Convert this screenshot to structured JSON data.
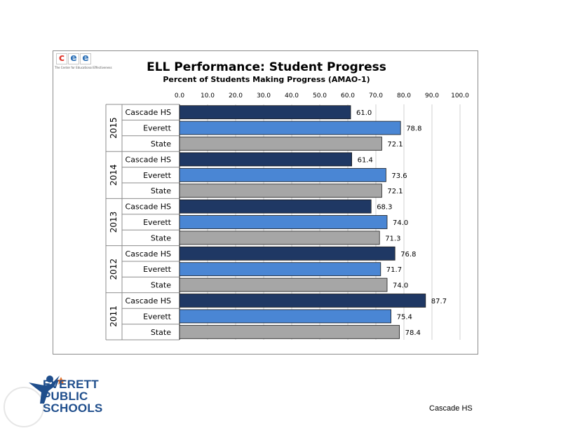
{
  "page": {
    "footer_label": "Cascade HS"
  },
  "logos": {
    "cee": {
      "letters": [
        "c",
        "e",
        "e"
      ],
      "colors": [
        "#e0392f",
        "#2b6fb6",
        "#2b6fb6"
      ],
      "tagline": "The Center for Educational Effectiveness"
    },
    "district": {
      "lines": [
        "EVERETT",
        "PUBLIC",
        "SCHOOLS"
      ]
    }
  },
  "chart_data": {
    "type": "bar",
    "orientation": "horizontal",
    "title": "ELL Performance:  Student Progress",
    "subtitle": "Percent of Students Making  Progress (AMAO-1)",
    "xlim": [
      0,
      100
    ],
    "x_ticks": [
      "0.0",
      "10.0",
      "20.0",
      "30.0",
      "40.0",
      "50.0",
      "60.0",
      "70.0",
      "80.0",
      "90.0",
      "100.0"
    ],
    "grid": true,
    "series_colors": {
      "Cascade HS": "#1f3864",
      "Everett": "#4a86d4",
      "State": "#a6a6a6"
    },
    "groups": [
      {
        "year": "2015",
        "bars": [
          {
            "label": "Cascade HS",
            "value": 61.0,
            "display": "61.0"
          },
          {
            "label": "Everett",
            "value": 78.8,
            "display": "78.8"
          },
          {
            "label": "State",
            "value": 72.1,
            "display": "72.1"
          }
        ]
      },
      {
        "year": "2014",
        "bars": [
          {
            "label": "Cascade HS",
            "value": 61.4,
            "display": "61.4"
          },
          {
            "label": "Everett",
            "value": 73.6,
            "display": "73.6"
          },
          {
            "label": "State",
            "value": 72.1,
            "display": "72.1"
          }
        ]
      },
      {
        "year": "2013",
        "bars": [
          {
            "label": "Cascade HS",
            "value": 68.3,
            "display": "68.3"
          },
          {
            "label": "Everett",
            "value": 74.0,
            "display": "74.0"
          },
          {
            "label": "State",
            "value": 71.3,
            "display": "71.3"
          }
        ]
      },
      {
        "year": "2012",
        "bars": [
          {
            "label": "Cascade HS",
            "value": 76.8,
            "display": "76.8"
          },
          {
            "label": "Everett",
            "value": 71.7,
            "display": "71.7"
          },
          {
            "label": "State",
            "value": 74.0,
            "display": "74.0"
          }
        ]
      },
      {
        "year": "2011",
        "bars": [
          {
            "label": "Cascade HS",
            "value": 87.7,
            "display": "87.7"
          },
          {
            "label": "Everett",
            "value": 75.4,
            "display": "75.4"
          },
          {
            "label": "State",
            "value": 78.4,
            "display": "78.4"
          }
        ]
      }
    ]
  }
}
